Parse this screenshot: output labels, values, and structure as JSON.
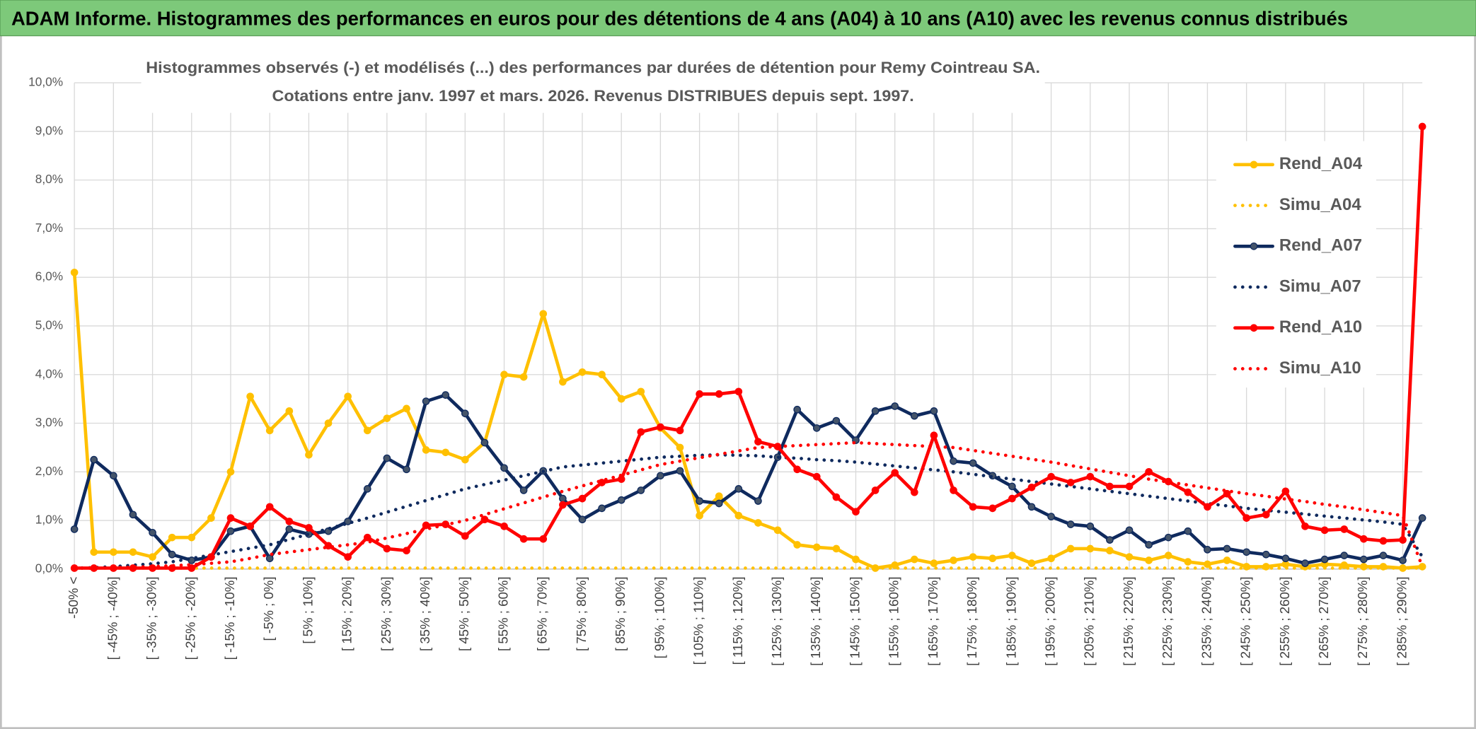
{
  "header": {
    "title": "ADAM Informe. Histogrammes des performances en euros pour des détentions de 4 ans (A04) à 10 ans (A10) avec les revenus connus distribués"
  },
  "chart_data": {
    "type": "line",
    "title": "Histogrammes observés (-) et modélisés (...) des performances par durées de détention pour Remy Cointreau SA.",
    "subtitle": "Cotations entre janv. 1997 et mars. 2026. Revenus DISTRIBUES depuis sept. 1997.",
    "categories": [
      "-50% <",
      null,
      "[ -45% ; -40%]",
      null,
      "[ -35% ; -30%]",
      null,
      "[ -25% ; -20%]",
      null,
      "[ -15% ; -10%]",
      null,
      "[ -5% ; 0%]",
      null,
      "[ 5% ; 10%]",
      null,
      "[ 15% ; 20%]",
      null,
      "[ 25% ; 30%]",
      null,
      "[ 35% ; 40%]",
      null,
      "[ 45% ; 50%]",
      null,
      "[ 55% ; 60%]",
      null,
      "[ 65% ; 70%]",
      null,
      "[ 75% ; 80%]",
      null,
      "[ 85% ; 90%]",
      null,
      "[ 95% ; 100%]",
      null,
      "[ 105% ; 110%]",
      null,
      "[ 115% ; 120%]",
      null,
      "[ 125% ; 130%]",
      null,
      "[ 135% ; 140%]",
      null,
      "[ 145% ; 150%]",
      null,
      "[ 155% ; 160%]",
      null,
      "[ 165% ; 170%]",
      null,
      "[ 175% ; 180%]",
      null,
      "[ 185% ; 190%]",
      null,
      "[ 195% ; 200%]",
      null,
      "[ 205% ; 210%]",
      null,
      "[ 215% ; 220%]",
      null,
      "[ 225% ; 230%]",
      null,
      "[ 235% ; 240%]",
      null,
      "[ 245% ; 250%]",
      null,
      "[ 255% ; 260%]",
      null,
      "[ 265% ; 270%]",
      null,
      "[ 275% ; 280%]",
      null,
      "[ 285% ; 290%]",
      null
    ],
    "series": [
      {
        "name": "Rend_A04",
        "color": "#ffc000",
        "style": "solid",
        "values": [
          6.1,
          0.35,
          0.35,
          0.35,
          0.25,
          0.65,
          0.65,
          1.05,
          2.0,
          3.55,
          2.85,
          3.25,
          2.35,
          3.0,
          3.55,
          2.85,
          3.1,
          3.3,
          2.45,
          2.4,
          2.25,
          2.6,
          4.0,
          3.95,
          5.25,
          3.85,
          4.05,
          4.0,
          3.5,
          3.65,
          2.9,
          2.5,
          1.1,
          1.5,
          1.1,
          0.95,
          0.8,
          0.5,
          0.45,
          0.42,
          0.2,
          0.02,
          0.08,
          0.2,
          0.12,
          0.18,
          0.25,
          0.22,
          0.28,
          0.12,
          0.22,
          0.42,
          0.42,
          0.38,
          0.25,
          0.18,
          0.28,
          0.15,
          0.1,
          0.18,
          0.05,
          0.05,
          0.1,
          0.05,
          0.1,
          0.08,
          0.05,
          0.05,
          0.02,
          0.05
        ]
      },
      {
        "name": "Simu_A04",
        "color": "#ffc000",
        "style": "dotted",
        "values": [
          0.02,
          0.02,
          0.02,
          0.02,
          0.02,
          0.02,
          0.02,
          0.02,
          0.02,
          0.02,
          0.02,
          0.02,
          0.02,
          0.02,
          0.02,
          0.02,
          0.02,
          0.02,
          0.02,
          0.02,
          0.02,
          0.02,
          0.02,
          0.02,
          0.02,
          0.02,
          0.02,
          0.02,
          0.02,
          0.02,
          0.02,
          0.02,
          0.02,
          0.02,
          0.02,
          0.02,
          0.02,
          0.02,
          0.02,
          0.02,
          0.02,
          0.02,
          0.02,
          0.02,
          0.02,
          0.02,
          0.02,
          0.02,
          0.02,
          0.02,
          0.02,
          0.02,
          0.02,
          0.02,
          0.02,
          0.02,
          0.02,
          0.02,
          0.02,
          0.02,
          0.02,
          0.02,
          0.02,
          0.02,
          0.02,
          0.02,
          0.02,
          0.02,
          0.02,
          0.02
        ]
      },
      {
        "name": "Rend_A07",
        "color": "#0f2a5e",
        "style": "solid",
        "values": [
          0.82,
          2.25,
          1.92,
          1.12,
          0.75,
          0.3,
          0.18,
          0.25,
          0.78,
          0.88,
          0.22,
          0.82,
          0.72,
          0.78,
          0.98,
          1.65,
          2.28,
          2.05,
          3.45,
          3.58,
          3.2,
          2.6,
          2.08,
          1.62,
          2.02,
          1.45,
          1.02,
          1.25,
          1.42,
          1.62,
          1.92,
          2.02,
          1.4,
          1.35,
          1.65,
          1.4,
          2.3,
          3.28,
          2.9,
          3.05,
          2.65,
          3.25,
          3.35,
          3.15,
          3.25,
          2.22,
          2.18,
          1.92,
          1.7,
          1.28,
          1.08,
          0.92,
          0.88,
          0.6,
          0.8,
          0.5,
          0.65,
          0.78,
          0.4,
          0.42,
          0.35,
          0.3,
          0.22,
          0.12,
          0.2,
          0.28,
          0.2,
          0.28,
          0.18,
          1.05
        ]
      },
      {
        "name": "Simu_A07",
        "color": "#0f2a5e",
        "style": "dotted",
        "values": [
          0.02,
          0.03,
          0.05,
          0.08,
          0.11,
          0.15,
          0.22,
          0.29,
          0.36,
          0.43,
          0.5,
          0.61,
          0.72,
          0.83,
          0.94,
          1.05,
          1.17,
          1.29,
          1.41,
          1.53,
          1.65,
          1.74,
          1.83,
          1.92,
          2.01,
          2.1,
          2.14,
          2.18,
          2.22,
          2.26,
          2.3,
          2.32,
          2.34,
          2.35,
          2.34,
          2.33,
          2.3,
          2.28,
          2.25,
          2.23,
          2.2,
          2.16,
          2.12,
          2.08,
          2.04,
          2.0,
          1.95,
          1.9,
          1.85,
          1.8,
          1.75,
          1.7,
          1.65,
          1.6,
          1.55,
          1.5,
          1.45,
          1.4,
          1.35,
          1.3,
          1.25,
          1.21,
          1.17,
          1.13,
          1.09,
          1.05,
          1.01,
          0.97,
          0.92,
          0.25
        ]
      },
      {
        "name": "Rend_A10",
        "color": "#ff0000",
        "style": "solid",
        "values": [
          0.02,
          0.02,
          0.02,
          0.02,
          0.02,
          0.02,
          0.02,
          0.25,
          1.05,
          0.88,
          1.28,
          0.98,
          0.85,
          0.48,
          0.25,
          0.65,
          0.42,
          0.38,
          0.9,
          0.92,
          0.68,
          1.02,
          0.88,
          0.62,
          0.62,
          1.32,
          1.45,
          1.78,
          1.85,
          2.82,
          2.92,
          2.85,
          3.6,
          3.6,
          3.65,
          2.62,
          2.52,
          2.05,
          1.9,
          1.48,
          1.18,
          1.62,
          1.98,
          1.58,
          2.75,
          1.62,
          1.28,
          1.25,
          1.45,
          1.68,
          1.9,
          1.78,
          1.9,
          1.7,
          1.7,
          2.0,
          1.8,
          1.58,
          1.28,
          1.55,
          1.05,
          1.12,
          1.6,
          0.88,
          0.8,
          0.82,
          0.62,
          0.58,
          0.6,
          9.1
        ]
      },
      {
        "name": "Simu_A10",
        "color": "#ff0000",
        "style": "dotted",
        "values": [
          0.02,
          0.02,
          0.03,
          0.04,
          0.05,
          0.07,
          0.09,
          0.12,
          0.15,
          0.22,
          0.3,
          0.35,
          0.4,
          0.45,
          0.5,
          0.55,
          0.64,
          0.73,
          0.82,
          0.91,
          1.0,
          1.12,
          1.24,
          1.36,
          1.48,
          1.6,
          1.71,
          1.82,
          1.93,
          2.04,
          2.15,
          2.22,
          2.29,
          2.36,
          2.43,
          2.5,
          2.52,
          2.54,
          2.56,
          2.58,
          2.6,
          2.58,
          2.56,
          2.54,
          2.52,
          2.5,
          2.44,
          2.38,
          2.32,
          2.26,
          2.2,
          2.13,
          2.06,
          1.99,
          1.92,
          1.85,
          1.79,
          1.73,
          1.67,
          1.61,
          1.55,
          1.5,
          1.44,
          1.39,
          1.33,
          1.28,
          1.22,
          1.16,
          1.1,
          0.05
        ]
      }
    ],
    "ylim": [
      0,
      10
    ],
    "yticks": [
      {
        "value": 0,
        "label": "0,0%"
      },
      {
        "value": 1,
        "label": "1,0%"
      },
      {
        "value": 2,
        "label": "2,0%"
      },
      {
        "value": 3,
        "label": "3,0%"
      },
      {
        "value": 4,
        "label": "4,0%"
      },
      {
        "value": 5,
        "label": "5,0%"
      },
      {
        "value": 6,
        "label": "6,0%"
      },
      {
        "value": 7,
        "label": "7,0%"
      },
      {
        "value": 8,
        "label": "8,0%"
      },
      {
        "value": 9,
        "label": "9,0%"
      },
      {
        "value": 10,
        "label": "10,0%"
      }
    ],
    "grid": true,
    "legend": "right"
  }
}
